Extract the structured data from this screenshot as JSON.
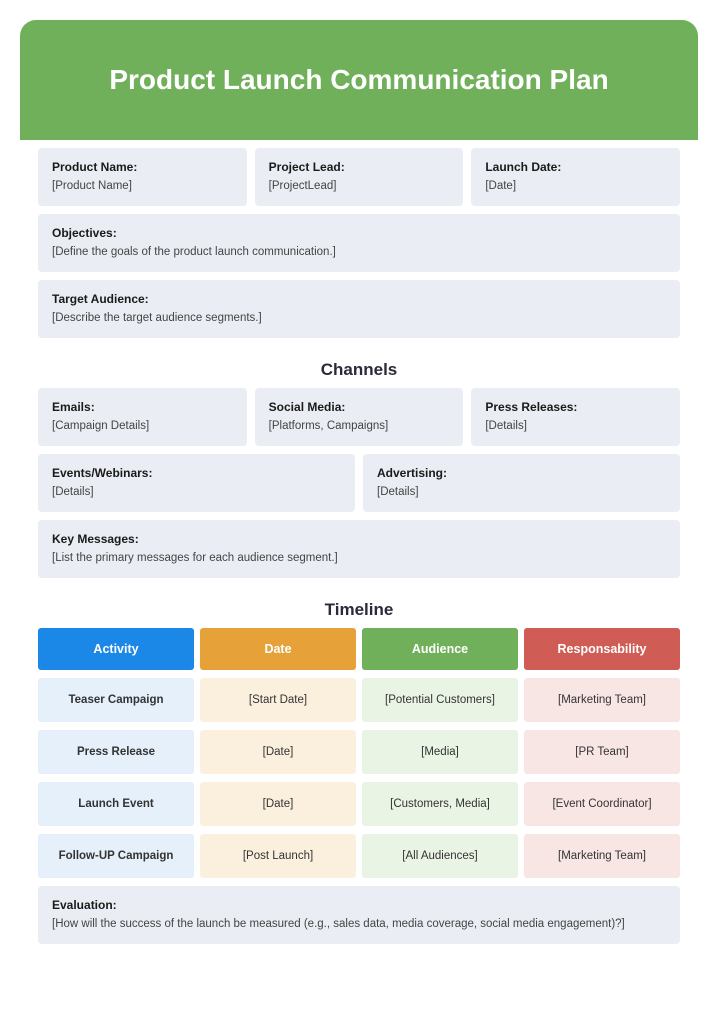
{
  "colors": {
    "header_bg": "#71b05a",
    "field_bg": "#eaedf4",
    "heading_text": "#2a2a3a",
    "th_activity": "#1b87e6",
    "th_date": "#e6a239",
    "th_audience": "#71b05a",
    "th_responsibility": "#cf5c55",
    "td_activity_bg": "#e6f0fa",
    "td_date_bg": "#fbf0dd",
    "td_audience_bg": "#eaf4e4",
    "td_responsibility_bg": "#f8e6e4"
  },
  "typography": {
    "title_fontsize": 28,
    "section_heading_fontsize": 17,
    "label_fontsize": 12,
    "value_fontsize": 11.5,
    "th_fontsize": 12.5
  },
  "title": "Product Launch Communication Plan",
  "top_fields": {
    "product_name": {
      "label": "Product Name:",
      "value": "[Product Name]"
    },
    "project_lead": {
      "label": "Project Lead:",
      "value": "[ProjectLead]"
    },
    "launch_date": {
      "label": "Launch Date:",
      "value": "[Date]"
    }
  },
  "objectives": {
    "label": "Objectives:",
    "value": "[Define the goals of the product launch communication.]"
  },
  "target_audience": {
    "label": "Target Audience:",
    "value": "[Describe the target audience segments.]"
  },
  "channels_heading": "Channels",
  "channels": {
    "emails": {
      "label": "Emails:",
      "value": "[Campaign Details]"
    },
    "social_media": {
      "label": "Social Media:",
      "value": "[Platforms, Campaigns]"
    },
    "press": {
      "label": "Press Releases:",
      "value": "[Details]"
    },
    "events": {
      "label": "Events/Webinars:",
      "value": "[Details]"
    },
    "advertising": {
      "label": "Advertising:",
      "value": "[Details]"
    }
  },
  "key_messages": {
    "label": "Key Messages:",
    "value": "[List the primary messages for each audience segment.]"
  },
  "timeline_heading": "Timeline",
  "timeline": {
    "headers": {
      "activity": "Activity",
      "date": "Date",
      "audience": "Audience",
      "responsibility": "Responsability"
    },
    "rows": [
      {
        "activity": "Teaser Campaign",
        "date": "[Start Date]",
        "audience": "[Potential Customers]",
        "responsibility": "[Marketing Team]"
      },
      {
        "activity": "Press Release",
        "date": "[Date]",
        "audience": "[Media]",
        "responsibility": "[PR Team]"
      },
      {
        "activity": "Launch Event",
        "date": "[Date]",
        "audience": "[Customers, Media]",
        "responsibility": "[Event Coordinator]"
      },
      {
        "activity": "Follow-UP Campaign",
        "date": "[Post Launch]",
        "audience": "[All Audiences]",
        "responsibility": "[Marketing Team]"
      }
    ]
  },
  "evaluation": {
    "label": "Evaluation:",
    "value": "[How will the success of the launch be measured (e.g., sales data, media coverage, social media engagement)?]"
  }
}
